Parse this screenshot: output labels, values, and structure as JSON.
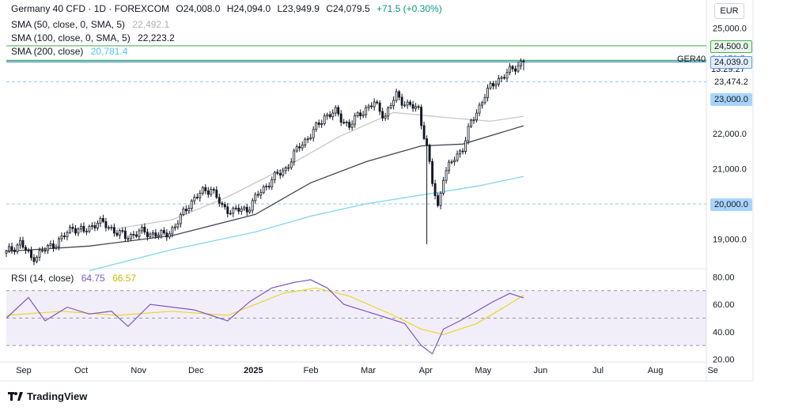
{
  "header": {
    "symbol_title": "Germany 40 CFD · 1D · FOREXCOM",
    "open": "O24,008.0",
    "high": "H24,094.0",
    "low": "L23,949.9",
    "close": "C24,079.5",
    "change": "+71.5 (+0.30%)"
  },
  "indicators": [
    {
      "label": "SMA (50, close, 0, SMA, 5)",
      "value": "22,492.1",
      "color": "#c7c7c7"
    },
    {
      "label": "SMA (100, close, 0, SMA, 5)",
      "value": "22,223.2",
      "color": "#434651"
    },
    {
      "label": "SMA (200, close)",
      "value": "20,781.4",
      "color": "#7fd6ef"
    }
  ],
  "rsi": {
    "label": "RSI (14, close)",
    "value": "64.75",
    "ma_value": "66.57",
    "color": "#7e57c2",
    "ma_color": "#e6d72a"
  },
  "currency": "EUR",
  "ticker_label": "GER40",
  "last_price": "24,079.5",
  "countdown": "13:29:27",
  "level_tags": [
    {
      "text": "24,500.0",
      "bg": "#e8f5e9",
      "fg": "#131722",
      "border": "#4caf50",
      "price": 24500
    },
    {
      "text": "24,039.0",
      "bg": "#e3eefb",
      "fg": "#131722",
      "border": "#5b9cf6",
      "price": 24039
    },
    {
      "text": "23,474.2",
      "bg": "#ffffff",
      "fg": "#131722",
      "border": "#ffffff",
      "price": 23474.2
    },
    {
      "text": "23,000.0",
      "bg": "#a8d4fa",
      "fg": "#131722",
      "border": "#a8d4fa",
      "price": 23000
    },
    {
      "text": "20,000.0",
      "bg": "#a8d4fa",
      "fg": "#131722",
      "border": "#a8d4fa",
      "price": 20000
    }
  ],
  "footer": {
    "brand": "TradingView"
  },
  "chart_data": {
    "type": "candlestick",
    "title": "Germany 40 CFD · 1D · FOREXCOM",
    "price_axis": {
      "ticks": [
        "25,000.0",
        "22,000.0",
        "21,000.0",
        "19,000.0"
      ],
      "tick_values": [
        25000,
        22000,
        21000,
        19000
      ],
      "range": [
        18200,
        25800
      ]
    },
    "rsi_axis": {
      "ticks": [
        "80.00",
        "60.00",
        "40.00",
        "20.00"
      ],
      "tick_values": [
        80,
        60,
        40,
        20
      ],
      "range": [
        18,
        86
      ],
      "bands": [
        70,
        50,
        30
      ]
    },
    "x_axis": {
      "labels": [
        "Sep",
        "Oct",
        "Nov",
        "Dec",
        "2025",
        "Feb",
        "Mar",
        "Apr",
        "May",
        "Jun",
        "Jul",
        "Aug",
        "Se"
      ],
      "bold": [
        "2025"
      ]
    },
    "horizontal_levels": [
      {
        "price": 24500,
        "style": "solid",
        "color": "#81c784"
      },
      {
        "price": 24079.5,
        "style": "solid",
        "color": "#4caf50"
      },
      {
        "price": 24039,
        "style": "solid",
        "color": "#5b9cf6"
      },
      {
        "price": 23474.2,
        "style": "dashed",
        "color": "#90caf9"
      },
      {
        "price": 20000,
        "style": "dashed",
        "color": "#90caf9"
      }
    ],
    "close_path": [
      [
        0,
        18600
      ],
      [
        5,
        18900
      ],
      [
        9,
        18450
      ],
      [
        14,
        18700
      ],
      [
        20,
        19000
      ],
      [
        24,
        19350
      ],
      [
        28,
        19200
      ],
      [
        33,
        19500
      ],
      [
        38,
        19300
      ],
      [
        43,
        19050
      ],
      [
        48,
        19200
      ],
      [
        53,
        19150
      ],
      [
        57,
        19100
      ],
      [
        61,
        19350
      ],
      [
        66,
        20000
      ],
      [
        71,
        20350
      ],
      [
        74,
        20450
      ],
      [
        78,
        19900
      ],
      [
        82,
        19800
      ],
      [
        87,
        19850
      ],
      [
        92,
        20350
      ],
      [
        96,
        20700
      ],
      [
        101,
        21000
      ],
      [
        106,
        21650
      ],
      [
        111,
        22050
      ],
      [
        115,
        22500
      ],
      [
        119,
        22600
      ],
      [
        124,
        22200
      ],
      [
        128,
        22600
      ],
      [
        133,
        22850
      ],
      [
        137,
        22500
      ],
      [
        141,
        23100
      ],
      [
        145,
        22800
      ],
      [
        149,
        22700
      ],
      [
        152,
        21600
      ],
      [
        154,
        20600
      ],
      [
        156,
        19900
      ],
      [
        158,
        20800
      ],
      [
        162,
        21300
      ],
      [
        165,
        21600
      ],
      [
        168,
        22300
      ],
      [
        173,
        23100
      ],
      [
        177,
        23500
      ],
      [
        181,
        23700
      ],
      [
        184,
        23900
      ],
      [
        187,
        24079.5
      ]
    ],
    "sma50_path": [
      [
        40,
        19300
      ],
      [
        60,
        19550
      ],
      [
        80,
        20200
      ],
      [
        100,
        21000
      ],
      [
        120,
        21900
      ],
      [
        140,
        22600
      ],
      [
        160,
        22450
      ],
      [
        175,
        22350
      ],
      [
        187,
        22492.1
      ]
    ],
    "sma100_path": [
      [
        0,
        18650
      ],
      [
        30,
        18800
      ],
      [
        60,
        19100
      ],
      [
        90,
        19700
      ],
      [
        110,
        20600
      ],
      [
        130,
        21200
      ],
      [
        150,
        21650
      ],
      [
        165,
        21700
      ],
      [
        187,
        22223.2
      ]
    ],
    "sma200_path": [
      [
        30,
        18100
      ],
      [
        60,
        18700
      ],
      [
        90,
        19200
      ],
      [
        110,
        19650
      ],
      [
        130,
        20000
      ],
      [
        150,
        20250
      ],
      [
        170,
        20500
      ],
      [
        187,
        20781.4
      ]
    ],
    "rsi_path": [
      [
        0,
        50
      ],
      [
        8,
        65
      ],
      [
        14,
        48
      ],
      [
        22,
        58
      ],
      [
        30,
        53
      ],
      [
        38,
        55
      ],
      [
        44,
        44
      ],
      [
        52,
        60
      ],
      [
        60,
        58
      ],
      [
        68,
        56
      ],
      [
        74,
        52
      ],
      [
        80,
        48
      ],
      [
        88,
        62
      ],
      [
        96,
        72
      ],
      [
        104,
        76
      ],
      [
        110,
        78
      ],
      [
        116,
        72
      ],
      [
        122,
        60
      ],
      [
        130,
        55
      ],
      [
        138,
        50
      ],
      [
        144,
        46
      ],
      [
        150,
        30
      ],
      [
        154,
        24
      ],
      [
        158,
        42
      ],
      [
        164,
        48
      ],
      [
        170,
        55
      ],
      [
        176,
        62
      ],
      [
        182,
        68
      ],
      [
        187,
        64.75
      ]
    ],
    "rsi_ma_path": [
      [
        0,
        52
      ],
      [
        20,
        55
      ],
      [
        40,
        52
      ],
      [
        60,
        55
      ],
      [
        80,
        52
      ],
      [
        100,
        68
      ],
      [
        112,
        72
      ],
      [
        124,
        66
      ],
      [
        140,
        52
      ],
      [
        150,
        42
      ],
      [
        158,
        38
      ],
      [
        170,
        46
      ],
      [
        180,
        58
      ],
      [
        187,
        66.57
      ]
    ]
  }
}
